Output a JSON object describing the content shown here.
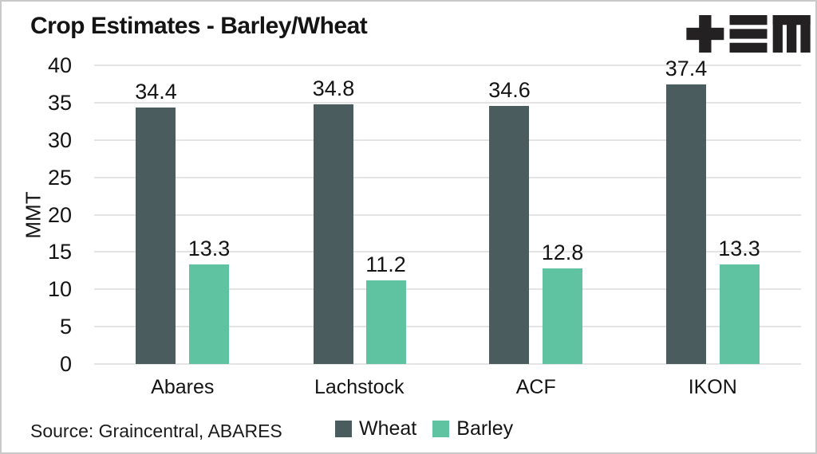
{
  "colors": {
    "wheat": "#4b5c5f",
    "barley": "#5fc3a1",
    "gridline": "#e4e4e4",
    "logo": "#242122",
    "text": "#141414"
  },
  "chart_data": {
    "type": "bar",
    "title": "Crop Estimates - Barley/Wheat",
    "categories": [
      "Abares",
      "Lachstock",
      "ACF",
      "IKON"
    ],
    "series": [
      {
        "name": "Wheat",
        "color": "#4b5c5f",
        "values": [
          34.4,
          34.8,
          34.6,
          37.4
        ]
      },
      {
        "name": "Barley",
        "color": "#5fc3a1",
        "values": [
          13.3,
          11.2,
          12.8,
          13.3
        ]
      }
    ],
    "xlabel": "",
    "ylabel": "MMT",
    "ylim": [
      0,
      40
    ],
    "yticks": [
      0,
      5,
      10,
      15,
      20,
      25,
      30,
      35,
      40
    ],
    "grid": true,
    "value_labels_decimals": 1,
    "legend_position": "bottom",
    "source_note": "Source: Graincentral, ABARES"
  }
}
